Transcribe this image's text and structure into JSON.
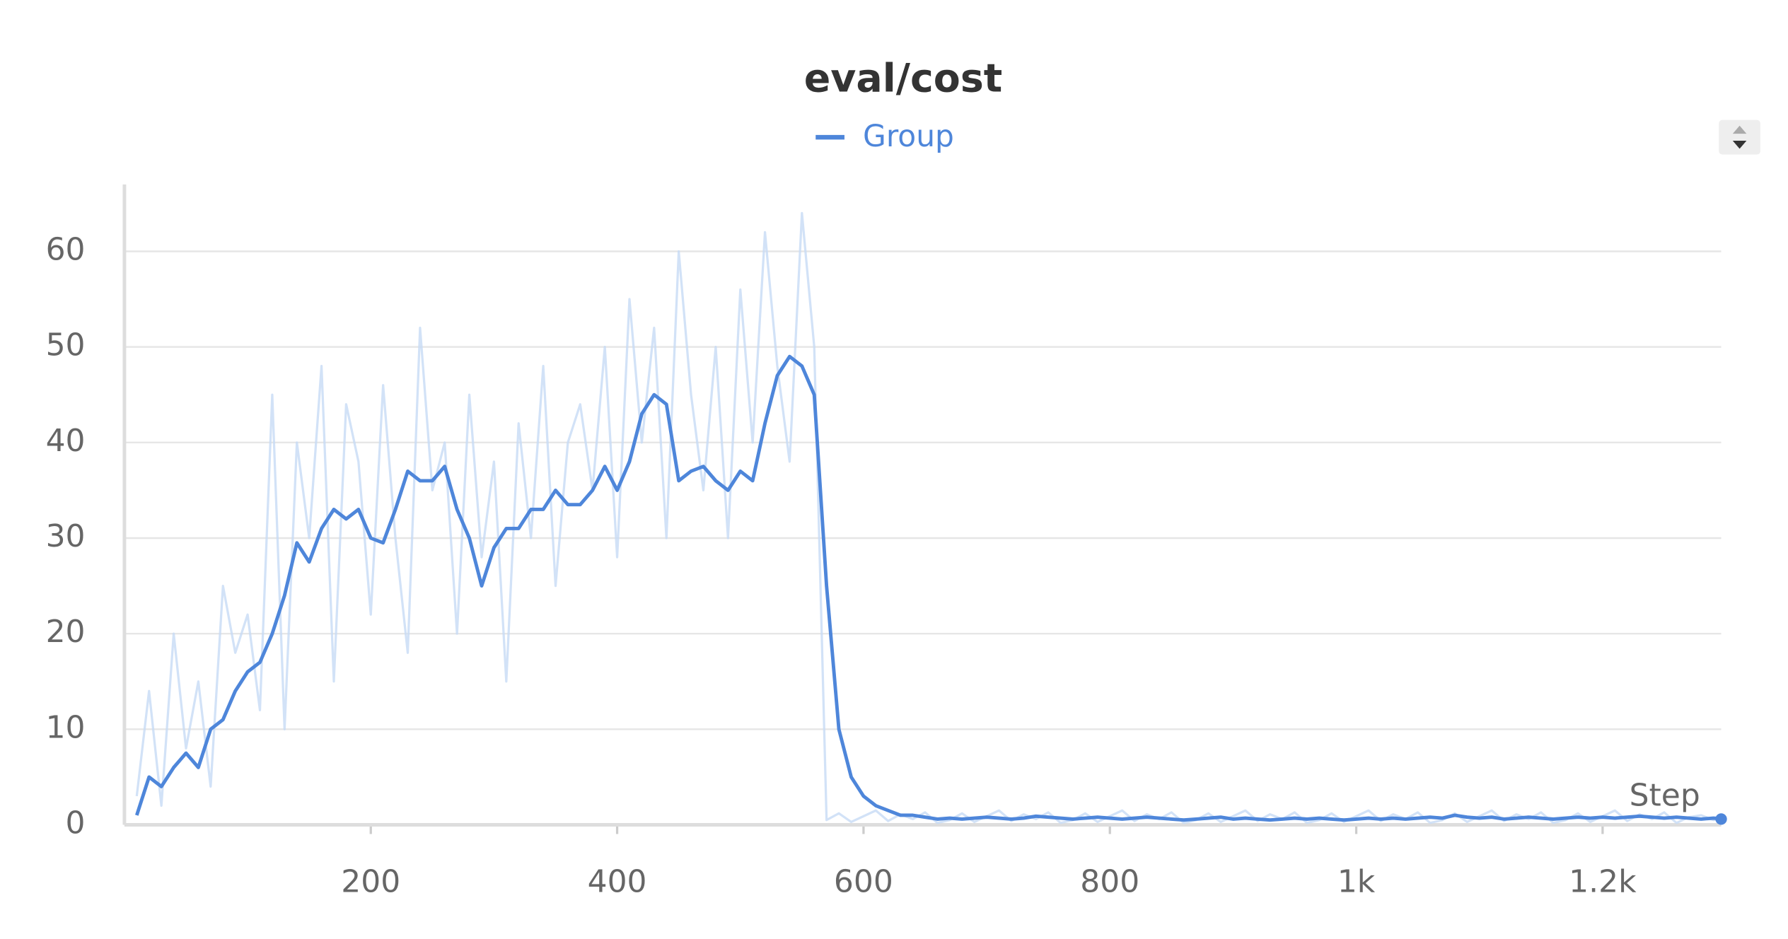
{
  "chart_data": {
    "type": "line",
    "title": "eval/cost",
    "x_label": "Step",
    "x": [
      10,
      20,
      30,
      40,
      50,
      60,
      70,
      80,
      90,
      100,
      110,
      120,
      130,
      140,
      150,
      160,
      170,
      180,
      190,
      200,
      210,
      220,
      230,
      240,
      250,
      260,
      270,
      280,
      290,
      300,
      310,
      320,
      330,
      340,
      350,
      360,
      370,
      380,
      390,
      400,
      410,
      420,
      430,
      440,
      450,
      460,
      470,
      480,
      490,
      500,
      510,
      520,
      530,
      540,
      550,
      560,
      570,
      580,
      590,
      600,
      610,
      620,
      630,
      640,
      650,
      660,
      670,
      680,
      690,
      700,
      710,
      720,
      730,
      740,
      750,
      760,
      770,
      780,
      790,
      800,
      810,
      820,
      830,
      840,
      850,
      860,
      870,
      880,
      890,
      900,
      910,
      920,
      930,
      940,
      950,
      960,
      970,
      980,
      990,
      1000,
      1010,
      1020,
      1030,
      1040,
      1050,
      1060,
      1070,
      1080,
      1090,
      1100,
      1110,
      1120,
      1130,
      1140,
      1150,
      1160,
      1170,
      1180,
      1190,
      1200,
      1210,
      1220,
      1230,
      1240,
      1250,
      1260,
      1270,
      1280,
      1290,
      1300
    ],
    "series": [
      {
        "name": "Group",
        "color": "#4e86da",
        "values": [
          1,
          5,
          4,
          6,
          7.5,
          6,
          10,
          11,
          14,
          16,
          17,
          20,
          24,
          29.5,
          27.5,
          31,
          33,
          32,
          33,
          30,
          29.5,
          33,
          37,
          36,
          36,
          37.5,
          33,
          30,
          25,
          29,
          31,
          31,
          33,
          33,
          35,
          33.5,
          33.5,
          35,
          37.5,
          35,
          38,
          43,
          45,
          44,
          36,
          37,
          37.5,
          36,
          35,
          37,
          36,
          42,
          47,
          49,
          48,
          45,
          25,
          10,
          5,
          3,
          2,
          1.5,
          1,
          1,
          0.8,
          0.6,
          0.7,
          0.6,
          0.7,
          0.8,
          0.7,
          0.6,
          0.7,
          0.9,
          0.8,
          0.7,
          0.6,
          0.7,
          0.8,
          0.7,
          0.6,
          0.7,
          0.8,
          0.7,
          0.6,
          0.5,
          0.6,
          0.7,
          0.8,
          0.6,
          0.7,
          0.6,
          0.5,
          0.6,
          0.7,
          0.6,
          0.7,
          0.6,
          0.5,
          0.6,
          0.7,
          0.6,
          0.7,
          0.6,
          0.7,
          0.8,
          0.7,
          1.0,
          0.8,
          0.7,
          0.8,
          0.6,
          0.7,
          0.8,
          0.7,
          0.6,
          0.7,
          0.8,
          0.7,
          0.8,
          0.7,
          0.8,
          0.9,
          0.8,
          0.7,
          0.8,
          0.7,
          0.6,
          0.7,
          0.6
        ]
      },
      {
        "color": "#c7dbf5",
        "values": [
          3,
          14,
          2,
          20,
          8,
          15,
          4,
          25,
          18,
          22,
          12,
          45,
          10,
          40,
          30,
          48,
          15,
          44,
          38,
          22,
          46,
          30,
          18,
          52,
          35,
          40,
          20,
          45,
          28,
          38,
          15,
          42,
          30,
          48,
          25,
          40,
          44,
          35,
          50,
          28,
          55,
          40,
          52,
          30,
          60,
          45,
          35,
          50,
          30,
          56,
          40,
          62,
          48,
          38,
          64,
          50,
          0.5,
          1.2,
          0.3,
          0.9,
          1.5,
          0.4,
          1.1,
          0.6,
          1.3,
          0.2,
          0.5,
          1.2,
          0.3,
          0.9,
          1.5,
          0.4,
          1.1,
          0.6,
          1.3,
          0.2,
          0.5,
          1.2,
          0.3,
          0.9,
          1.5,
          0.4,
          1.1,
          0.6,
          1.3,
          0.2,
          0.5,
          1.2,
          0.3,
          0.9,
          1.5,
          0.4,
          1.1,
          0.6,
          1.3,
          0.2,
          0.5,
          1.2,
          0.3,
          0.9,
          1.5,
          0.4,
          1.1,
          0.6,
          1.3,
          0.2,
          0.5,
          1.2,
          0.3,
          0.9,
          1.5,
          0.4,
          1.1,
          0.6,
          1.3,
          0.2,
          0.5,
          1.2,
          0.3,
          0.9,
          1.5,
          0.4,
          1.1,
          0.6,
          1.3,
          0.2,
          0.8,
          1.0,
          0.5,
          0.7
        ]
      }
    ],
    "xlim": [
      0,
      1300
    ],
    "ylim": [
      0,
      67
    ],
    "xticks": [
      200,
      400,
      600,
      800,
      {
        "value": 1000,
        "label": "1k"
      },
      {
        "value": 1200,
        "label": "1.2k"
      }
    ],
    "yticks": [
      0,
      10,
      20,
      30,
      40,
      50,
      60
    ],
    "grid": true
  }
}
